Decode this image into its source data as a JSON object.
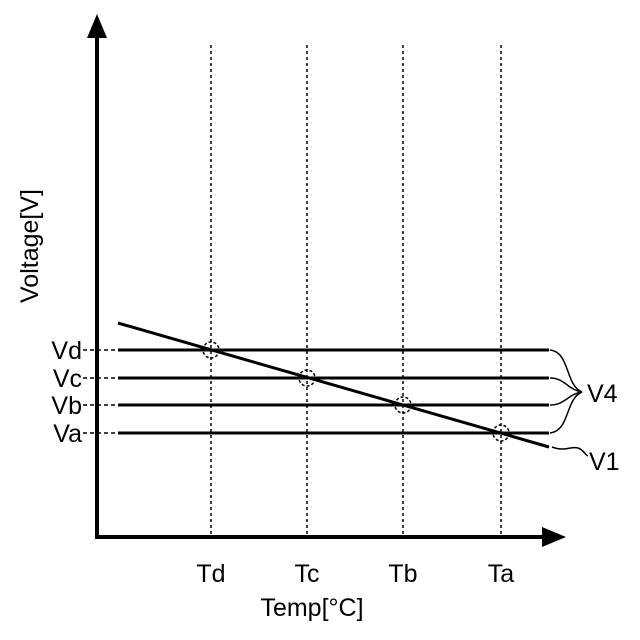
{
  "axes": {
    "y_label": "Voltage[V]",
    "x_label": "Temp[°C]"
  },
  "temperatures": [
    "Td",
    "Tc",
    "Tb",
    "Ta"
  ],
  "voltages": [
    "Vd",
    "Vc",
    "Vb",
    "Va"
  ],
  "callouts": {
    "horizontal_lines": "V4",
    "sloped_line": "V1"
  },
  "colors": {
    "ink": "#000000",
    "background": "#ffffff"
  }
}
